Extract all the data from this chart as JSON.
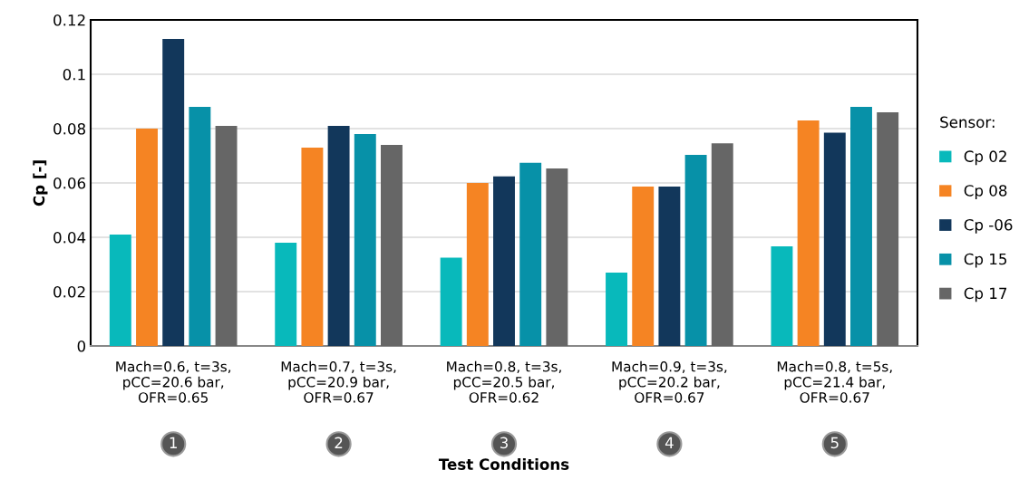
{
  "chart_data": {
    "type": "bar",
    "xlabel": "Test Conditions",
    "ylabel": "Cp [-]",
    "legend_title": "Sensor:",
    "categories": [
      "Mach=0.6, t=3s,\npCC=20.6 bar,\nOFR=0.65",
      "Mach=0.7, t=3s,\npCC=20.9 bar,\nOFR=0.67",
      "Mach=0.8, t=3s,\npCC=20.5 bar,\nOFR=0.62",
      "Mach=0.9, t=3s,\npCC=20.2 bar,\nOFR=0.67",
      "Mach=0.8, t=5s,\npCC=21.4 bar,\nOFR=0.67"
    ],
    "series": [
      {
        "name": "Cp 02",
        "color": "#08b9bb",
        "values": [
          0.041,
          0.038,
          0.0325,
          0.027,
          0.0367
        ]
      },
      {
        "name": "Cp 08",
        "color": "#f58423",
        "values": [
          0.08,
          0.073,
          0.06,
          0.0587,
          0.083
        ]
      },
      {
        "name": "Cp -06",
        "color": "#12375b",
        "values": [
          0.113,
          0.081,
          0.0624,
          0.0587,
          0.0785
        ]
      },
      {
        "name": "Cp 15",
        "color": "#0791a8",
        "values": [
          0.088,
          0.078,
          0.0674,
          0.0703,
          0.088
        ]
      },
      {
        "name": "Cp 17",
        "color": "#666666",
        "values": [
          0.081,
          0.074,
          0.0653,
          0.0746,
          0.086
        ]
      }
    ],
    "annotations": [
      "1",
      "2",
      "3",
      "4",
      "5"
    ],
    "ylim": [
      0,
      0.12
    ],
    "yticks": [
      0,
      0.02,
      0.04,
      0.06,
      0.08,
      0.1,
      0.12
    ],
    "grid": "y",
    "legend": "right"
  }
}
